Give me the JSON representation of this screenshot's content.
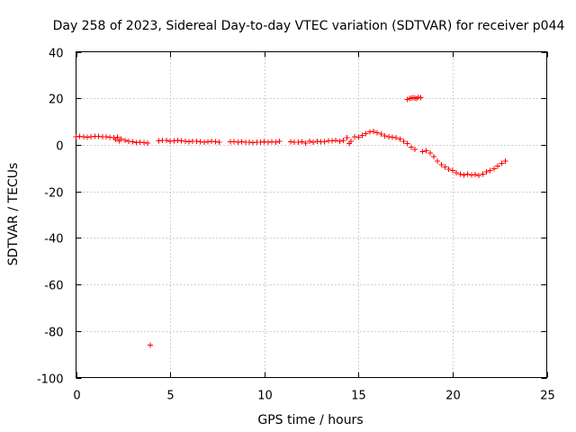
{
  "chart_data": {
    "type": "scatter",
    "title": "Day 258 of 2023, Sidereal Day-to-day VTEC variation (SDTVAR) for receiver p044",
    "xlabel": "GPS time / hours",
    "ylabel": "SDTVAR / TECUs",
    "xlim": [
      0,
      25
    ],
    "ylim": [
      -100,
      40
    ],
    "xticks": [
      0,
      5,
      10,
      15,
      20,
      25
    ],
    "yticks": [
      -100,
      -80,
      -60,
      -40,
      -20,
      0,
      20,
      40
    ],
    "grid": true,
    "marker": "+",
    "series": [
      {
        "name": "SDTVAR",
        "color": "#ff0000",
        "x": [
          0.0,
          0.2,
          0.4,
          0.6,
          0.8,
          1.0,
          1.2,
          1.4,
          1.6,
          1.8,
          2.0,
          2.1,
          2.2,
          2.3,
          2.4,
          2.6,
          2.8,
          3.0,
          3.2,
          3.4,
          3.6,
          3.8,
          4.4,
          4.6,
          4.8,
          5.0,
          5.2,
          5.4,
          5.6,
          5.8,
          6.0,
          6.2,
          6.4,
          6.6,
          6.8,
          7.0,
          7.2,
          7.4,
          7.6,
          8.2,
          8.4,
          8.6,
          8.8,
          9.0,
          9.2,
          9.4,
          9.6,
          9.8,
          10.0,
          10.2,
          10.4,
          10.6,
          10.8,
          11.4,
          11.6,
          11.8,
          12.0,
          12.2,
          12.4,
          12.6,
          12.8,
          13.0,
          13.2,
          13.4,
          13.6,
          13.8,
          14.0,
          14.2,
          14.4,
          14.5,
          14.6,
          14.8,
          15.0,
          15.2,
          15.4,
          15.6,
          15.8,
          16.0,
          16.2,
          16.4,
          16.6,
          16.8,
          17.0,
          17.2,
          17.4,
          17.6,
          17.8,
          18.0,
          18.4,
          18.6,
          18.8,
          19.0,
          19.2,
          19.4,
          19.6,
          19.8,
          20.0,
          20.2,
          20.4,
          20.6,
          20.8,
          21.0,
          21.2,
          21.4,
          21.6,
          21.8,
          22.0,
          22.2,
          22.4,
          22.6,
          22.8,
          17.6,
          17.7,
          17.8,
          17.9,
          18.0,
          18.1,
          18.2,
          18.3,
          3.95
        ],
        "y": [
          3.5,
          3.6,
          3.4,
          3.3,
          3.5,
          3.6,
          3.7,
          3.5,
          3.4,
          3.2,
          3.1,
          2.2,
          3.3,
          1.8,
          2.4,
          2.0,
          1.6,
          1.3,
          1.0,
          1.2,
          0.9,
          0.8,
          1.8,
          2.0,
          1.9,
          1.6,
          1.8,
          1.9,
          1.7,
          1.5,
          1.4,
          1.5,
          1.6,
          1.3,
          1.2,
          1.4,
          1.5,
          1.3,
          1.2,
          1.3,
          1.4,
          1.2,
          1.3,
          1.1,
          1.2,
          1.0,
          1.1,
          1.2,
          1.3,
          1.1,
          1.4,
          1.2,
          1.5,
          1.4,
          1.2,
          1.1,
          1.3,
          0.8,
          1.5,
          1.2,
          1.6,
          1.4,
          1.3,
          1.7,
          1.8,
          1.9,
          1.5,
          2.0,
          3.0,
          0.5,
          1.5,
          3.5,
          3.2,
          4.0,
          4.8,
          5.5,
          5.8,
          5.2,
          4.6,
          3.8,
          3.5,
          3.2,
          3.0,
          2.5,
          1.5,
          0.5,
          -1.0,
          -2.0,
          -3.0,
          -2.5,
          -3.5,
          -5.0,
          -7.0,
          -8.5,
          -9.5,
          -10.5,
          -11.0,
          -12.0,
          -12.5,
          -13.0,
          -12.6,
          -13.0,
          -12.8,
          -13.2,
          -12.5,
          -11.6,
          -11.0,
          -10.3,
          -9.2,
          -8.0,
          -7.0,
          19.5,
          19.8,
          20.0,
          20.3,
          20.1,
          19.9,
          20.4,
          20.2,
          -86.0
        ]
      }
    ]
  }
}
